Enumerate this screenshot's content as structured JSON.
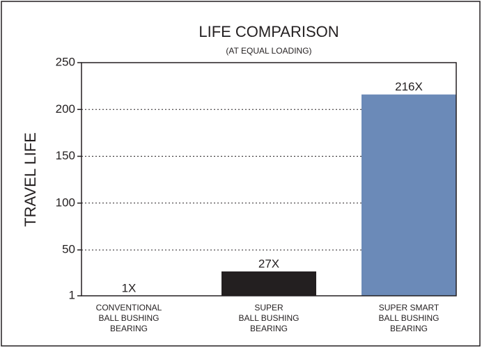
{
  "chart_data": {
    "type": "bar",
    "title": "LIFE COMPARISON",
    "subtitle": "(AT EQUAL LOADING)",
    "y_label": "TRAVEL LIFE",
    "categories": [
      [
        "CONVENTIONAL",
        "BALL BUSHING",
        "BEARING"
      ],
      [
        "SUPER",
        "BALL BUSHING",
        "BEARING"
      ],
      [
        "SUPER SMART",
        "BALL BUSHING",
        "BEARING"
      ]
    ],
    "values": [
      1,
      27,
      216
    ],
    "value_labels": [
      "1X",
      "27X",
      "216X"
    ],
    "colors": [
      "#231f20",
      "#231f20",
      "#6b8ab8"
    ],
    "ylim": [
      1,
      250
    ],
    "yticks": [
      1,
      50,
      100,
      150,
      200,
      250
    ],
    "grid": true
  }
}
